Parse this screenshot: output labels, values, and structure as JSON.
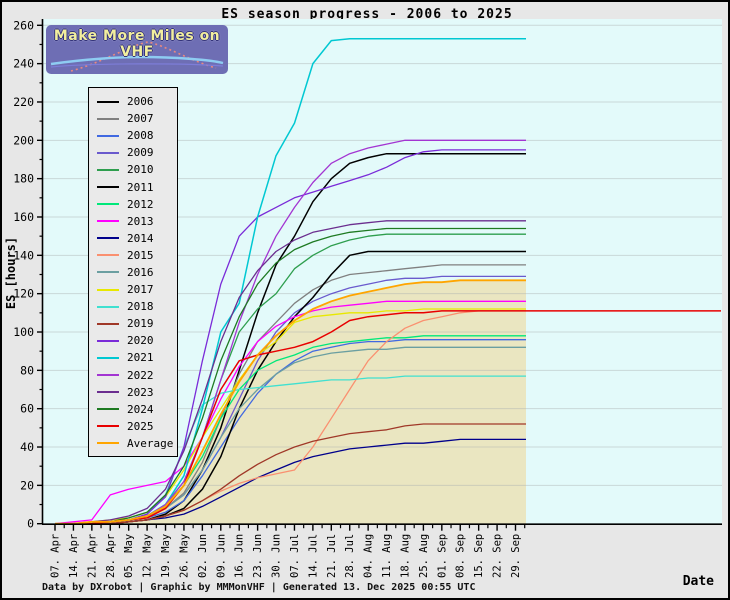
{
  "title": "ES season progress - 2006 to 2025",
  "logo": {
    "text": "Make More Miles on VHF"
  },
  "y_axis": {
    "label": "ES [hours]",
    "ticks": [
      0,
      20,
      40,
      60,
      80,
      100,
      120,
      140,
      160,
      180,
      200,
      220,
      240,
      260
    ]
  },
  "x_axis": {
    "label": "Date",
    "ticks": [
      "07. Apr",
      "14. Apr",
      "21. Apr",
      "28. Apr",
      "05. May",
      "12. May",
      "19. May",
      "26. May",
      "02. Jun",
      "09. Jun",
      "16. Jun",
      "23. Jun",
      "30. Jun",
      "07. Jul",
      "14. Jul",
      "21. Jul",
      "28. Jul",
      "04. Aug",
      "11. Aug",
      "18. Aug",
      "25. Aug",
      "01. Sep",
      "08. Sep",
      "15. Sep",
      "22. Sep",
      "29. Sep"
    ]
  },
  "footer": {
    "text": "Data by DXrobot  |  Graphic by MMMonVHF  |  Generated 13. Dec 2025 00:55 UTC"
  },
  "colors": {
    "plot_bg": "#E3FAFA",
    "outer_bg": "#E7E7E7",
    "grid": "#AAB0B0",
    "axis": "#000000",
    "average_fill": "#EAE5BE"
  },
  "chart_data": {
    "type": "line",
    "title": "ES season progress - 2006 to 2025",
    "xlabel": "Date",
    "ylabel": "ES [hours]",
    "ylim": [
      0,
      260
    ],
    "grid": "horizontal",
    "legend_position": "upper-left",
    "x": [
      "07. Apr",
      "14. Apr",
      "21. Apr",
      "28. Apr",
      "05. May",
      "12. May",
      "19. May",
      "26. May",
      "02. Jun",
      "09. Jun",
      "16. Jun",
      "23. Jun",
      "30. Jun",
      "07. Jul",
      "14. Jul",
      "21. Jul",
      "28. Jul",
      "04. Aug",
      "11. Aug",
      "18. Aug",
      "25. Aug",
      "01. Sep",
      "08. Sep",
      "15. Sep",
      "22. Sep",
      "29. Sep"
    ],
    "series": [
      {
        "name": "2006",
        "color": "#000000",
        "values": [
          0,
          0,
          0,
          0,
          1,
          2,
          5,
          12,
          28,
          50,
          80,
          110,
          135,
          150,
          168,
          180,
          188,
          191,
          193,
          193,
          193,
          193,
          193,
          193,
          193,
          193
        ]
      },
      {
        "name": "2007",
        "color": "#808080",
        "values": [
          0,
          0,
          0,
          1,
          2,
          4,
          8,
          16,
          32,
          55,
          78,
          95,
          105,
          115,
          122,
          127,
          130,
          131,
          132,
          133,
          134,
          135,
          135,
          135,
          135,
          135
        ]
      },
      {
        "name": "2008",
        "color": "#4169E1",
        "values": [
          0,
          0,
          0,
          1,
          2,
          3,
          6,
          12,
          25,
          40,
          55,
          68,
          78,
          85,
          90,
          92,
          94,
          95,
          95,
          96,
          96,
          96,
          96,
          96,
          96,
          96
        ]
      },
      {
        "name": "2009",
        "color": "#6A5ACD",
        "values": [
          0,
          0,
          0,
          1,
          2,
          4,
          8,
          15,
          28,
          45,
          65,
          85,
          100,
          110,
          116,
          120,
          123,
          125,
          127,
          128,
          128,
          129,
          129,
          129,
          129,
          129
        ]
      },
      {
        "name": "2010",
        "color": "#2E9E4E",
        "values": [
          0,
          0,
          0,
          1,
          2,
          4,
          10,
          22,
          45,
          75,
          100,
          112,
          120,
          133,
          140,
          145,
          148,
          150,
          151,
          151,
          151,
          151,
          151,
          151,
          151,
          151
        ]
      },
      {
        "name": "2011",
        "color": "#000000",
        "values": [
          0,
          0,
          0,
          0,
          1,
          2,
          4,
          8,
          18,
          35,
          60,
          80,
          95,
          108,
          118,
          130,
          140,
          142,
          142,
          142,
          142,
          142,
          142,
          142,
          142,
          142
        ]
      },
      {
        "name": "2012",
        "color": "#00E87A",
        "values": [
          0,
          0,
          0,
          1,
          2,
          4,
          10,
          20,
          35,
          55,
          70,
          80,
          85,
          88,
          92,
          94,
          95,
          96,
          97,
          97,
          98,
          98,
          98,
          98,
          98,
          98
        ]
      },
      {
        "name": "2013",
        "color": "#FF00FF",
        "values": [
          0,
          1,
          2,
          15,
          18,
          20,
          22,
          30,
          45,
          65,
          82,
          95,
          103,
          108,
          111,
          113,
          114,
          115,
          116,
          116,
          116,
          116,
          116,
          116,
          116,
          116
        ]
      },
      {
        "name": "2014",
        "color": "#00008B",
        "values": [
          0,
          0,
          0,
          0,
          1,
          2,
          3,
          5,
          9,
          14,
          19,
          24,
          28,
          32,
          35,
          37,
          39,
          40,
          41,
          42,
          42,
          43,
          44,
          44,
          44,
          44
        ]
      },
      {
        "name": "2015",
        "color": "#FA9070",
        "values": [
          0,
          0,
          0,
          0,
          1,
          2,
          4,
          7,
          12,
          17,
          21,
          24,
          26,
          28,
          40,
          55,
          70,
          85,
          95,
          102,
          106,
          108,
          110,
          111,
          111,
          111
        ]
      },
      {
        "name": "2016",
        "color": "#6B9FA1",
        "values": [
          0,
          0,
          0,
          1,
          2,
          4,
          8,
          15,
          28,
          45,
          60,
          70,
          78,
          84,
          87,
          89,
          90,
          91,
          91,
          92,
          92,
          92,
          92,
          92,
          92,
          92
        ]
      },
      {
        "name": "2017",
        "color": "#E8E800",
        "values": [
          0,
          0,
          1,
          2,
          3,
          6,
          14,
          28,
          45,
          60,
          75,
          88,
          95,
          105,
          108,
          109,
          110,
          110,
          111,
          111,
          112,
          112,
          112,
          112,
          112,
          112
        ]
      },
      {
        "name": "2018",
        "color": "#40E0D0",
        "values": [
          0,
          0,
          1,
          1,
          2,
          5,
          15,
          40,
          62,
          68,
          70,
          71,
          72,
          73,
          74,
          75,
          75,
          76,
          76,
          77,
          77,
          77,
          77,
          77,
          77,
          77
        ]
      },
      {
        "name": "2019",
        "color": "#A03828",
        "values": [
          0,
          0,
          0,
          0,
          1,
          2,
          4,
          7,
          12,
          18,
          25,
          31,
          36,
          40,
          43,
          45,
          47,
          48,
          49,
          51,
          52,
          52,
          52,
          52,
          52,
          52
        ]
      },
      {
        "name": "2020",
        "color": "#7A2BD8",
        "values": [
          0,
          0,
          0,
          1,
          2,
          5,
          14,
          40,
          85,
          125,
          150,
          160,
          165,
          170,
          173,
          176,
          179,
          182,
          186,
          191,
          194,
          195,
          195,
          195,
          195,
          195
        ]
      },
      {
        "name": "2021",
        "color": "#00C8D2",
        "values": [
          0,
          0,
          0,
          1,
          2,
          4,
          10,
          25,
          60,
          100,
          115,
          160,
          192,
          209,
          240,
          252,
          253,
          253,
          253,
          253,
          253,
          253,
          253,
          253,
          253,
          253
        ]
      },
      {
        "name": "2022",
        "color": "#A335D2",
        "values": [
          0,
          0,
          0,
          1,
          2,
          4,
          10,
          22,
          45,
          75,
          105,
          130,
          150,
          165,
          178,
          188,
          193,
          196,
          198,
          200,
          200,
          200,
          200,
          200,
          200,
          200
        ]
      },
      {
        "name": "2023",
        "color": "#6B2E8F",
        "values": [
          0,
          0,
          1,
          2,
          4,
          8,
          18,
          38,
          65,
          95,
          118,
          132,
          142,
          148,
          152,
          154,
          156,
          157,
          158,
          158,
          158,
          158,
          158,
          158,
          158,
          158
        ]
      },
      {
        "name": "2024",
        "color": "#1E7A22",
        "values": [
          0,
          0,
          0,
          1,
          3,
          6,
          15,
          30,
          55,
          85,
          108,
          125,
          136,
          143,
          147,
          150,
          152,
          153,
          154,
          154,
          154,
          154,
          154,
          154,
          154,
          154
        ]
      },
      {
        "name": "2025",
        "color": "#E80000",
        "extend_right": true,
        "values": [
          0,
          0,
          0,
          1,
          2,
          3,
          8,
          20,
          45,
          70,
          85,
          88,
          90,
          92,
          95,
          100,
          106,
          108,
          109,
          110,
          110,
          111,
          111,
          111,
          111,
          111
        ]
      },
      {
        "name": "Average",
        "color": "#FFA500",
        "filled": true,
        "values": [
          0,
          0,
          1,
          1,
          2,
          4,
          9,
          20,
          38,
          57,
          74,
          88,
          98,
          106,
          112,
          116,
          119,
          121,
          123,
          125,
          126,
          126,
          127,
          127,
          127,
          127
        ]
      }
    ]
  }
}
